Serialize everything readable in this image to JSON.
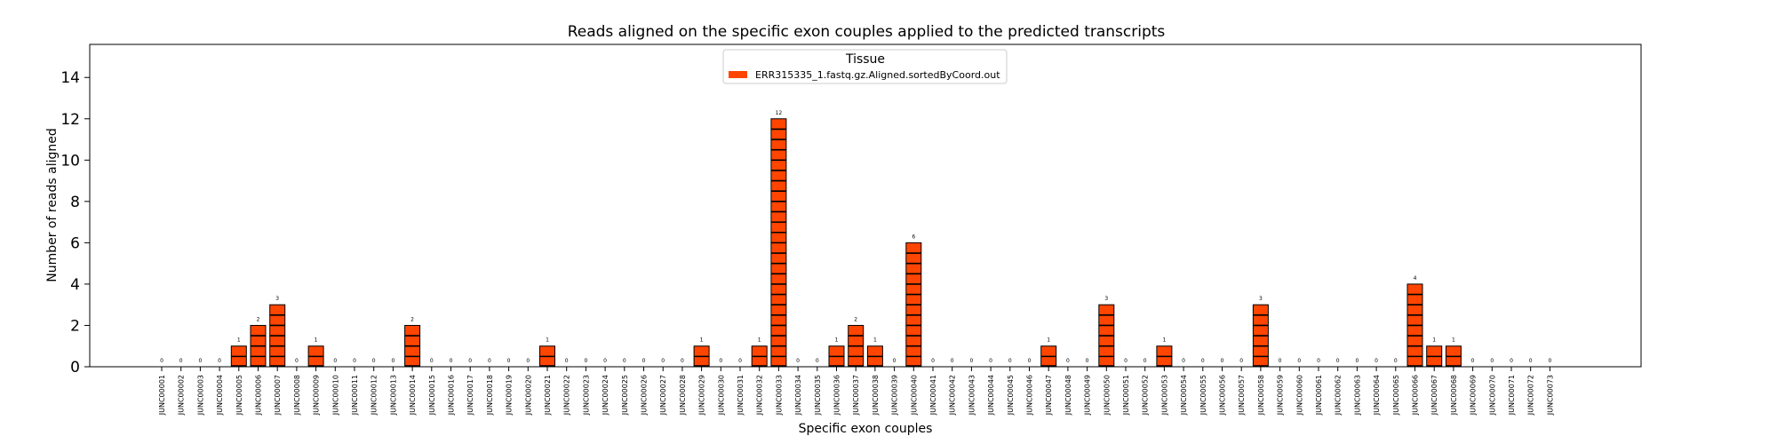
{
  "chart_data": {
    "type": "bar",
    "title": "Reads aligned on the specific exon couples applied to the predicted transcripts",
    "xlabel": "Specific exon couples",
    "ylabel": "Number of reads aligned",
    "ylim": [
      0,
      15.6
    ],
    "yticks": [
      0,
      2,
      4,
      6,
      8,
      10,
      12,
      14
    ],
    "legend": {
      "title": "Tissue",
      "position": "top-center"
    },
    "bar_color": "#ff4500",
    "categories": [
      "JUNC00001",
      "JUNC00002",
      "JUNC00003",
      "JUNC00004",
      "JUNC00005",
      "JUNC00006",
      "JUNC00007",
      "JUNC00008",
      "JUNC00009",
      "JUNC00010",
      "JUNC00011",
      "JUNC00012",
      "JUNC00013",
      "JUNC00014",
      "JUNC00015",
      "JUNC00016",
      "JUNC00017",
      "JUNC00018",
      "JUNC00019",
      "JUNC00020",
      "JUNC00021",
      "JUNC00022",
      "JUNC00023",
      "JUNC00024",
      "JUNC00025",
      "JUNC00026",
      "JUNC00027",
      "JUNC00028",
      "JUNC00029",
      "JUNC00030",
      "JUNC00031",
      "JUNC00032",
      "JUNC00033",
      "JUNC00034",
      "JUNC00035",
      "JUNC00036",
      "JUNC00037",
      "JUNC00038",
      "JUNC00039",
      "JUNC00040",
      "JUNC00041",
      "JUNC00042",
      "JUNC00043",
      "JUNC00044",
      "JUNC00045",
      "JUNC00046",
      "JUNC00047",
      "JUNC00048",
      "JUNC00049",
      "JUNC00050",
      "JUNC00051",
      "JUNC00052",
      "JUNC00053",
      "JUNC00054",
      "JUNC00055",
      "JUNC00056",
      "JUNC00057",
      "JUNC00058",
      "JUNC00059",
      "JUNC00060",
      "JUNC00061",
      "JUNC00062",
      "JUNC00063",
      "JUNC00064",
      "JUNC00065",
      "JUNC00066",
      "JUNC00067",
      "JUNC00068",
      "JUNC00069",
      "JUNC00070",
      "JUNC00071",
      "JUNC00072",
      "JUNC00073"
    ],
    "series": [
      {
        "name": "ERR315335_1.fastq.gz.Aligned.sortedByCoord.out",
        "values": [
          0,
          0,
          0,
          0,
          1,
          2,
          3,
          0,
          1,
          0,
          0,
          0,
          0,
          2,
          0,
          0,
          0,
          0,
          0,
          0,
          1,
          0,
          0,
          0,
          0,
          0,
          0,
          0,
          1,
          0,
          0,
          1,
          12,
          0,
          0,
          1,
          2,
          1,
          0,
          6,
          0,
          0,
          0,
          0,
          0,
          0,
          1,
          0,
          0,
          3,
          0,
          0,
          1,
          0,
          0,
          0,
          0,
          3,
          0,
          0,
          0,
          0,
          0,
          0,
          0,
          4,
          1,
          1,
          0,
          0,
          0,
          0,
          0
        ]
      }
    ],
    "grid": false
  }
}
